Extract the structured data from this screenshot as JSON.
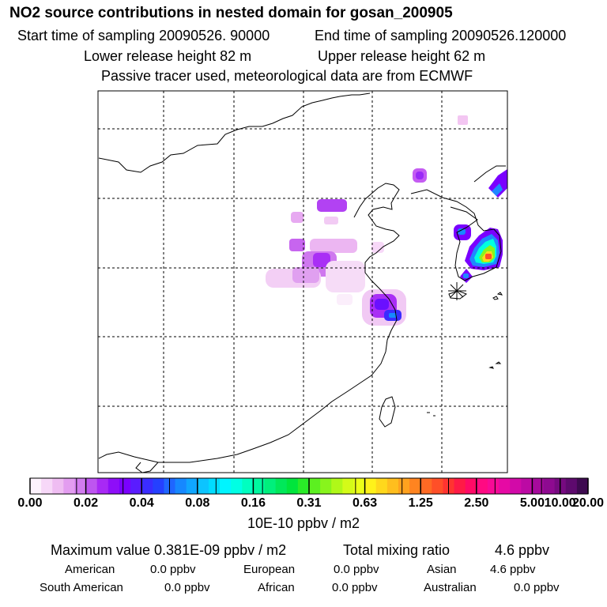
{
  "title": "NO2 source contributions in nested domain for gosan_200905",
  "start_label": "Start time of sampling 20090526. 90000",
  "end_label": "End time of sampling 20090526.120000",
  "lower_label": "Lower release height   82 m",
  "upper_label": "Upper release height   62 m",
  "tracer_label": "Passive tracer used, meteorological data are from ECMWF",
  "chart_data": {
    "type": "heatmap",
    "colorbar": {
      "ticks": [
        "0.00",
        "0.02",
        "0.04",
        "0.08",
        "0.16",
        "0.31",
        "0.63",
        "1.25",
        "2.50",
        "5.00",
        "10.00",
        "20.00"
      ],
      "unit": "10E-10 ppbv / m2",
      "colors": [
        "#fdf2fd",
        "#f7d8f8",
        "#efbdf2",
        "#e39df0",
        "#d27cef",
        "#be55f0",
        "#a829f5",
        "#8e0ef8",
        "#7a00ff",
        "#5a1cff",
        "#3a2cff",
        "#2540ff",
        "#1f66ff",
        "#1688ff",
        "#10a6ff",
        "#0cc4ff",
        "#00dcff",
        "#00f5ff",
        "#00ffe4",
        "#00ffc0",
        "#00f7a0",
        "#00ef7c",
        "#00e85a",
        "#00e53c",
        "#2aeb28",
        "#5cf020",
        "#88f41c",
        "#b0f818",
        "#d4fb18",
        "#ecff18",
        "#fff21a",
        "#ffd81c",
        "#ffbe1e",
        "#ffa21e",
        "#ff8420",
        "#ff6a24",
        "#ff4f28",
        "#ff3430",
        "#ff1a46",
        "#ff0a66",
        "#ff0a82",
        "#f80a96",
        "#e60aa4",
        "#d20aa8",
        "#bc0aa4",
        "#a60a9c",
        "#8e0a90",
        "#760a80",
        "#5e0a6e",
        "#3e0a50"
      ],
      "tick_value_fractions": [
        0,
        0.1,
        0.2,
        0.3,
        0.4,
        0.5,
        0.6,
        0.7,
        0.8,
        0.9,
        0.95,
        1
      ]
    },
    "grid_lines_x": 5,
    "grid_lines_y": 5,
    "receptor_symbol": "asterisk"
  },
  "stats": {
    "max_label": "Maximum value  0.381E-09 ppbv / m2",
    "total_label": "Total mixing ratio",
    "total_value": "4.6 ppbv"
  },
  "regions": {
    "american_label": "American",
    "american_value": "0.0 ppbv",
    "european_label": "European",
    "european_value": "0.0 ppbv",
    "asian_label": "Asian",
    "asian_value": "4.6 ppbv",
    "south_american_label": "South American",
    "south_american_value": "0.0 ppbv",
    "african_label": "African",
    "african_value": "0.0 ppbv",
    "australian_label": "Australian",
    "australian_value": "0.0 ppbv"
  }
}
